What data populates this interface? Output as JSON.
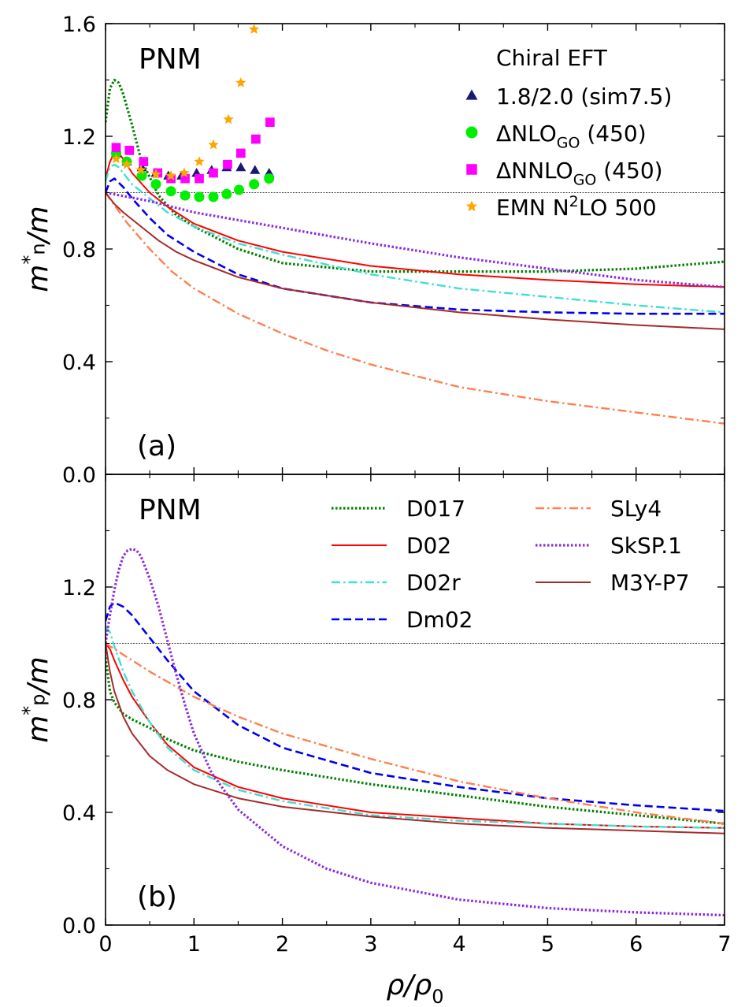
{
  "chart_data": [
    {
      "panel": "(a)",
      "type": "line",
      "panel_tag": "(a)",
      "matter_label": "PNM",
      "ylabel": {
        "main": "m",
        "sup": "*",
        "sub": "n",
        "tail": "/m"
      },
      "xlim": [
        0,
        7
      ],
      "ylim": [
        0,
        1.6
      ],
      "yticks": [
        "0.0",
        "0.4",
        "0.8",
        "1.2",
        "1.6"
      ],
      "reference_line": 1.0,
      "legend_title": "Chiral EFT",
      "legend_placement": "top-right",
      "legend": [
        {
          "name": "1.8/2.0 (sim7.5)",
          "marker": "triangle",
          "color": "#191970"
        },
        {
          "name": "ΔNLO",
          "sub": "GO",
          "tail": " (450)",
          "marker": "circle",
          "color": "#00ee00"
        },
        {
          "name": "ΔNNLO",
          "sub": "GO",
          "tail": " (450)",
          "marker": "square",
          "color": "#ff00ff"
        },
        {
          "name": "EMN N",
          "sup": "2",
          "tail": "LO 500",
          "marker": "star",
          "color": "#ffa500"
        }
      ],
      "series": [
        {
          "name": "D017",
          "color": "#008000",
          "style": "dotted",
          "x": [
            0,
            0.05,
            0.1,
            0.15,
            0.2,
            0.3,
            0.4,
            0.6,
            0.8,
            1,
            1.5,
            2,
            3,
            4,
            5,
            6,
            7
          ],
          "y": [
            1.25,
            1.37,
            1.4,
            1.39,
            1.35,
            1.24,
            1.12,
            0.99,
            0.92,
            0.88,
            0.8,
            0.75,
            0.72,
            0.72,
            0.72,
            0.73,
            0.755
          ]
        },
        {
          "name": "D02",
          "color": "#ff0000",
          "style": "solid",
          "x": [
            0,
            0.05,
            0.1,
            0.15,
            0.2,
            0.3,
            0.5,
            0.7,
            1,
            1.5,
            2,
            3,
            4,
            5,
            6,
            7
          ],
          "y": [
            1.05,
            1.11,
            1.14,
            1.14,
            1.12,
            1.07,
            1.0,
            0.95,
            0.89,
            0.83,
            0.79,
            0.74,
            0.71,
            0.69,
            0.675,
            0.665
          ]
        },
        {
          "name": "D02r",
          "color": "#40e0d0",
          "style": "dashdot",
          "x": [
            0,
            0.05,
            0.1,
            0.15,
            0.2,
            0.3,
            0.5,
            0.7,
            1,
            1.5,
            2,
            3,
            4,
            5,
            6,
            7
          ],
          "y": [
            1.04,
            1.09,
            1.1,
            1.09,
            1.07,
            1.03,
            0.98,
            0.93,
            0.88,
            0.82,
            0.78,
            0.71,
            0.66,
            0.63,
            0.6,
            0.575
          ]
        },
        {
          "name": "Dm02",
          "color": "#0000ee",
          "style": "dashed",
          "x": [
            0,
            0.05,
            0.1,
            0.2,
            0.3,
            0.5,
            0.7,
            1,
            1.5,
            2,
            3,
            4,
            5,
            6,
            7
          ],
          "y": [
            1.0,
            1.04,
            1.05,
            1.02,
            0.98,
            0.91,
            0.85,
            0.79,
            0.71,
            0.66,
            0.61,
            0.585,
            0.575,
            0.57,
            0.57
          ]
        },
        {
          "name": "SLy4",
          "color": "#ff7f50",
          "style": "dashdot",
          "x": [
            0,
            0.25,
            0.5,
            0.75,
            1,
            1.5,
            2,
            2.5,
            3,
            3.5,
            4,
            5,
            6,
            7
          ],
          "y": [
            1.0,
            0.89,
            0.8,
            0.72,
            0.66,
            0.57,
            0.5,
            0.44,
            0.39,
            0.35,
            0.31,
            0.26,
            0.22,
            0.18
          ]
        },
        {
          "name": "SkSP.1",
          "color": "#8a2be2",
          "style": "dotted",
          "x": [
            0,
            0.5,
            1,
            2,
            3,
            4,
            5,
            6,
            7
          ],
          "y": [
            1.0,
            0.97,
            0.93,
            0.875,
            0.82,
            0.77,
            0.73,
            0.69,
            0.665
          ]
        },
        {
          "name": "M3Y-P7",
          "color": "#a52a2a",
          "style": "solid",
          "x": [
            0,
            0.1,
            0.2,
            0.4,
            0.6,
            0.8,
            1,
            1.5,
            2,
            3,
            4,
            5,
            6,
            7
          ],
          "y": [
            1.0,
            0.96,
            0.93,
            0.88,
            0.83,
            0.79,
            0.76,
            0.7,
            0.66,
            0.61,
            0.575,
            0.55,
            0.53,
            0.515
          ]
        }
      ],
      "scatter": [
        {
          "name": "1.8/2.0 (sim7.5)",
          "marker": "triangle",
          "color": "#191970",
          "x": [
            0.12,
            0.24,
            0.41,
            0.57,
            0.71,
            0.86,
            1.03,
            1.2,
            1.37,
            1.53,
            1.69,
            1.85
          ],
          "y": [
            1.14,
            1.11,
            1.09,
            1.07,
            1.06,
            1.06,
            1.07,
            1.08,
            1.09,
            1.09,
            1.08,
            1.07
          ]
        },
        {
          "name": "ΔNLOGO (450)",
          "marker": "circle",
          "color": "#00ee00",
          "x": [
            0.12,
            0.24,
            0.41,
            0.57,
            0.74,
            0.9,
            1.06,
            1.22,
            1.37,
            1.51,
            1.68,
            1.85
          ],
          "y": [
            1.14,
            1.11,
            1.06,
            1.03,
            1.005,
            0.99,
            0.985,
            0.985,
            0.995,
            1.01,
            1.03,
            1.05
          ]
        },
        {
          "name": "ΔNNLOGO (450)",
          "marker": "square",
          "color": "#ff00ff",
          "x": [
            0.12,
            0.27,
            0.43,
            0.59,
            0.74,
            0.9,
            1.06,
            1.22,
            1.38,
            1.53,
            1.7,
            1.86
          ],
          "y": [
            1.16,
            1.15,
            1.11,
            1.07,
            1.05,
            1.05,
            1.05,
            1.07,
            1.1,
            1.14,
            1.19,
            1.25
          ]
        },
        {
          "name": "EMN N2LO 500",
          "marker": "star",
          "color": "#ffa500",
          "x": [
            0.12,
            0.24,
            0.4,
            0.57,
            0.74,
            0.89,
            1.06,
            1.22,
            1.39,
            1.53,
            1.68
          ],
          "y": [
            1.12,
            1.1,
            1.08,
            1.065,
            1.06,
            1.07,
            1.11,
            1.17,
            1.26,
            1.39,
            1.58
          ]
        }
      ]
    },
    {
      "panel": "(b)",
      "type": "line",
      "panel_tag": "(b)",
      "matter_label": "PNM",
      "ylabel": {
        "main": "m",
        "sup": "*",
        "sub": "p",
        "tail": "/m"
      },
      "xlabel": {
        "main": "ρ/ρ",
        "sub": "0"
      },
      "xlim": [
        0,
        7
      ],
      "ylim": [
        0,
        1.6
      ],
      "xticks": [
        "0",
        "1",
        "2",
        "3",
        "4",
        "5",
        "6",
        "7"
      ],
      "yticks": [
        "0.0",
        "0.4",
        "0.8",
        "1.2"
      ],
      "reference_line": 1.0,
      "legend_placement": "top-right",
      "legend": [
        {
          "name": "D017",
          "color": "#008000",
          "style": "dotted"
        },
        {
          "name": "D02",
          "color": "#ff0000",
          "style": "solid"
        },
        {
          "name": "D02r",
          "color": "#40e0d0",
          "style": "dashdot"
        },
        {
          "name": "Dm02",
          "color": "#0000ee",
          "style": "dashed"
        },
        {
          "name": "SLy4",
          "color": "#ff7f50",
          "style": "dashdot"
        },
        {
          "name": "SkSP.1",
          "color": "#8a2be2",
          "style": "dotted"
        },
        {
          "name": "M3Y-P7",
          "color": "#a52a2a",
          "style": "solid"
        }
      ],
      "series": [
        {
          "name": "D017",
          "color": "#008000",
          "style": "dotted",
          "x": [
            0,
            0.05,
            0.1,
            0.2,
            0.3,
            0.5,
            0.7,
            1,
            1.5,
            2,
            3,
            4,
            5,
            6,
            7
          ],
          "y": [
            0.95,
            0.83,
            0.79,
            0.75,
            0.73,
            0.7,
            0.66,
            0.62,
            0.58,
            0.55,
            0.5,
            0.46,
            0.42,
            0.39,
            0.36
          ]
        },
        {
          "name": "D02",
          "color": "#ff0000",
          "style": "solid",
          "x": [
            0,
            0.05,
            0.1,
            0.2,
            0.3,
            0.5,
            0.7,
            1,
            1.5,
            2,
            3,
            4,
            5,
            6,
            7
          ],
          "y": [
            1.0,
            0.98,
            0.94,
            0.87,
            0.81,
            0.72,
            0.64,
            0.56,
            0.49,
            0.45,
            0.4,
            0.38,
            0.36,
            0.35,
            0.345
          ]
        },
        {
          "name": "D02r",
          "color": "#40e0d0",
          "style": "dashdot",
          "x": [
            0,
            0.05,
            0.1,
            0.2,
            0.3,
            0.5,
            0.7,
            1,
            1.5,
            2,
            3,
            4,
            5,
            6,
            7
          ],
          "y": [
            1.06,
            1.04,
            0.99,
            0.9,
            0.83,
            0.72,
            0.63,
            0.55,
            0.48,
            0.44,
            0.39,
            0.37,
            0.36,
            0.35,
            0.345
          ]
        },
        {
          "name": "Dm02",
          "color": "#0000ee",
          "style": "dashed",
          "x": [
            0,
            0.05,
            0.1,
            0.2,
            0.3,
            0.5,
            0.7,
            1,
            1.5,
            2,
            3,
            4,
            5,
            6,
            7
          ],
          "y": [
            1.08,
            1.13,
            1.145,
            1.13,
            1.1,
            1.02,
            0.94,
            0.83,
            0.71,
            0.63,
            0.54,
            0.49,
            0.45,
            0.425,
            0.405
          ]
        },
        {
          "name": "SLy4",
          "color": "#ff7f50",
          "style": "dashdot",
          "x": [
            0,
            0.5,
            1,
            1.5,
            2,
            3,
            4,
            5,
            6,
            7
          ],
          "y": [
            1.0,
            0.9,
            0.81,
            0.74,
            0.68,
            0.59,
            0.51,
            0.45,
            0.4,
            0.36
          ]
        },
        {
          "name": "SkSP.1",
          "color": "#8a2be2",
          "style": "dotted",
          "x": [
            0,
            0.05,
            0.1,
            0.15,
            0.2,
            0.25,
            0.3,
            0.35,
            0.4,
            0.5,
            0.6,
            0.7,
            0.8,
            0.9,
            1,
            1.2,
            1.5,
            2,
            2.5,
            3,
            4,
            5,
            6,
            7
          ],
          "y": [
            1.0,
            1.1,
            1.19,
            1.26,
            1.31,
            1.33,
            1.335,
            1.33,
            1.31,
            1.23,
            1.13,
            1.01,
            0.89,
            0.78,
            0.68,
            0.54,
            0.41,
            0.28,
            0.2,
            0.15,
            0.09,
            0.06,
            0.045,
            0.035
          ]
        },
        {
          "name": "M3Y-P7",
          "color": "#a52a2a",
          "style": "solid",
          "x": [
            0,
            0.05,
            0.1,
            0.2,
            0.3,
            0.5,
            0.7,
            1,
            1.5,
            2,
            3,
            4,
            5,
            6,
            7
          ],
          "y": [
            1.0,
            0.9,
            0.83,
            0.74,
            0.68,
            0.6,
            0.55,
            0.5,
            0.45,
            0.42,
            0.385,
            0.36,
            0.345,
            0.335,
            0.325
          ]
        }
      ]
    }
  ]
}
